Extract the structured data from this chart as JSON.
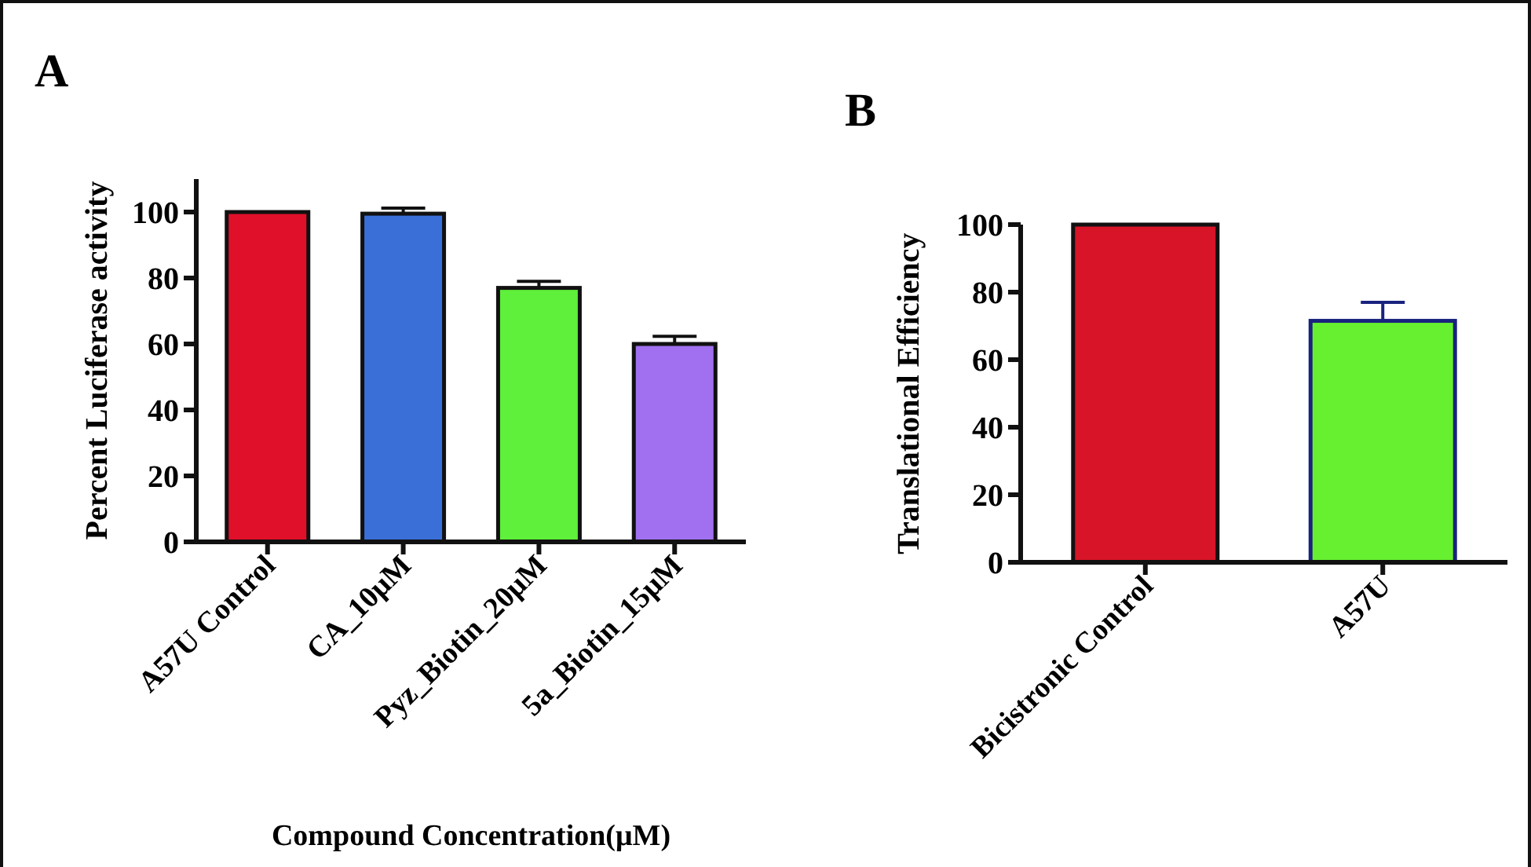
{
  "chart_data": [
    {
      "type": "bar",
      "title": "A",
      "xlabel": "Compound Concentration(μM)",
      "ylabel": "Percent Luciferase activity",
      "categories": [
        "A57U Control",
        "CA_10μM",
        "Pyz_Biotin_20μM",
        "5a_Biotin_15μM"
      ],
      "values": [
        100,
        99.5,
        77,
        60
      ],
      "errors": [
        null,
        1.7,
        2,
        2.3
      ],
      "colors": [
        "#e0102a",
        "#3a6fd8",
        "#5ef03a",
        "#a070f0"
      ],
      "ylim": [
        0,
        110
      ],
      "yticks": [
        0,
        20,
        40,
        60,
        80,
        100
      ],
      "grid": false
    },
    {
      "type": "bar",
      "title": "B",
      "ylabel": "Translational Efficiency",
      "categories": [
        "Bicistronic Control",
        "A57U"
      ],
      "values": [
        100,
        71.5
      ],
      "errors": [
        null,
        5.5
      ],
      "colors": [
        "#d81428",
        "#66f030"
      ],
      "ylim": [
        0,
        100
      ],
      "yticks": [
        0,
        20,
        40,
        60,
        80,
        100
      ],
      "grid": false
    }
  ]
}
